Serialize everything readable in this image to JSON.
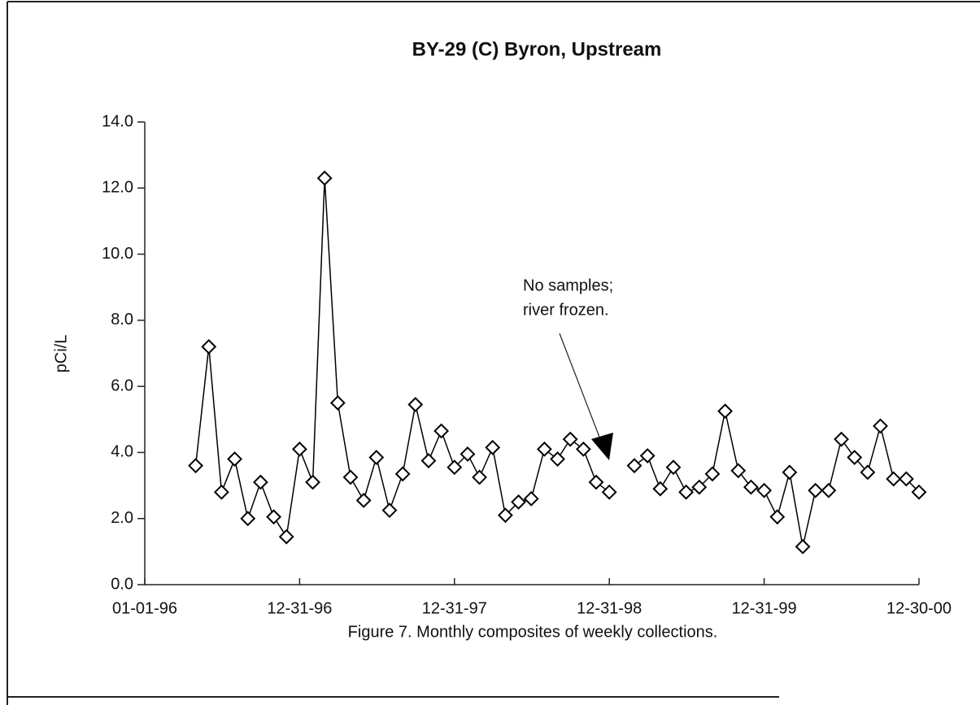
{
  "chart_data": {
    "type": "line",
    "title": "BY-29 (C)  Byron, Upstream",
    "y_label": "pCi/L",
    "caption": "Figure 7.  Monthly composites of weekly collections.",
    "annotation": [
      "No samples;",
      "river  frozen."
    ],
    "x": [
      "04-30-96",
      "05-31-96",
      "06-30-96",
      "07-31-96",
      "08-31-96",
      "09-30-96",
      "10-31-96",
      "11-30-96",
      "12-31-96",
      "01-31-97",
      "02-28-97",
      "03-31-97",
      "04-30-97",
      "05-31-97",
      "06-30-97",
      "07-31-97",
      "08-31-97",
      "09-30-97",
      "10-31-97",
      "11-30-97",
      "12-31-97",
      "01-31-98",
      "02-28-98",
      "03-31-98",
      "04-30-98",
      "05-31-98",
      "06-30-98",
      "07-31-98",
      "08-31-98",
      "09-30-98",
      "10-31-98",
      "11-30-98",
      "12-31-98",
      "01-31-99",
      "02-28-99",
      "03-31-99",
      "04-30-99",
      "05-31-99",
      "06-30-99",
      "07-31-99",
      "08-31-99",
      "09-30-99",
      "10-31-99",
      "11-30-99",
      "12-31-99",
      "01-31-00",
      "02-29-00",
      "03-31-00",
      "04-30-00",
      "05-31-00",
      "06-30-00",
      "07-31-00",
      "08-31-00",
      "09-30-00",
      "10-31-00",
      "11-30-00",
      "12-30-00"
    ],
    "series": [
      {
        "name": "BY-29",
        "color": "#000000",
        "values": [
          3.6,
          7.2,
          2.8,
          3.8,
          2.0,
          3.1,
          2.05,
          1.45,
          4.1,
          3.1,
          12.3,
          5.5,
          3.25,
          2.55,
          3.85,
          2.25,
          3.35,
          5.45,
          3.75,
          4.65,
          3.55,
          3.95,
          3.25,
          4.15,
          2.1,
          2.5,
          2.6,
          4.1,
          3.8,
          4.4,
          4.1,
          3.1,
          2.8,
          null,
          3.6,
          3.9,
          2.9,
          3.55,
          2.8,
          2.95,
          3.35,
          5.25,
          3.45,
          2.95,
          2.85,
          2.05,
          3.4,
          1.15,
          2.85,
          2.85,
          4.4,
          3.85,
          3.4,
          4.8,
          3.2,
          3.2,
          2.8
        ]
      }
    ],
    "xlim": [
      "01-01-96",
      "12-30-00"
    ],
    "xticks": [
      "01-01-96",
      "12-31-96",
      "12-31-97",
      "12-31-98",
      "12-31-99",
      "12-30-00"
    ],
    "ylim": [
      0,
      14
    ],
    "yticks": [
      {
        "value": 0,
        "label": "0.0"
      },
      {
        "value": 2,
        "label": "2.0"
      },
      {
        "value": 4,
        "label": "4.0"
      },
      {
        "value": 6,
        "label": "6.0"
      },
      {
        "value": 8,
        "label": "8.0"
      },
      {
        "value": 10,
        "label": "10.0"
      },
      {
        "value": 12,
        "label": "12.0"
      },
      {
        "value": 14,
        "label": "14.0"
      }
    ],
    "grid": false
  }
}
